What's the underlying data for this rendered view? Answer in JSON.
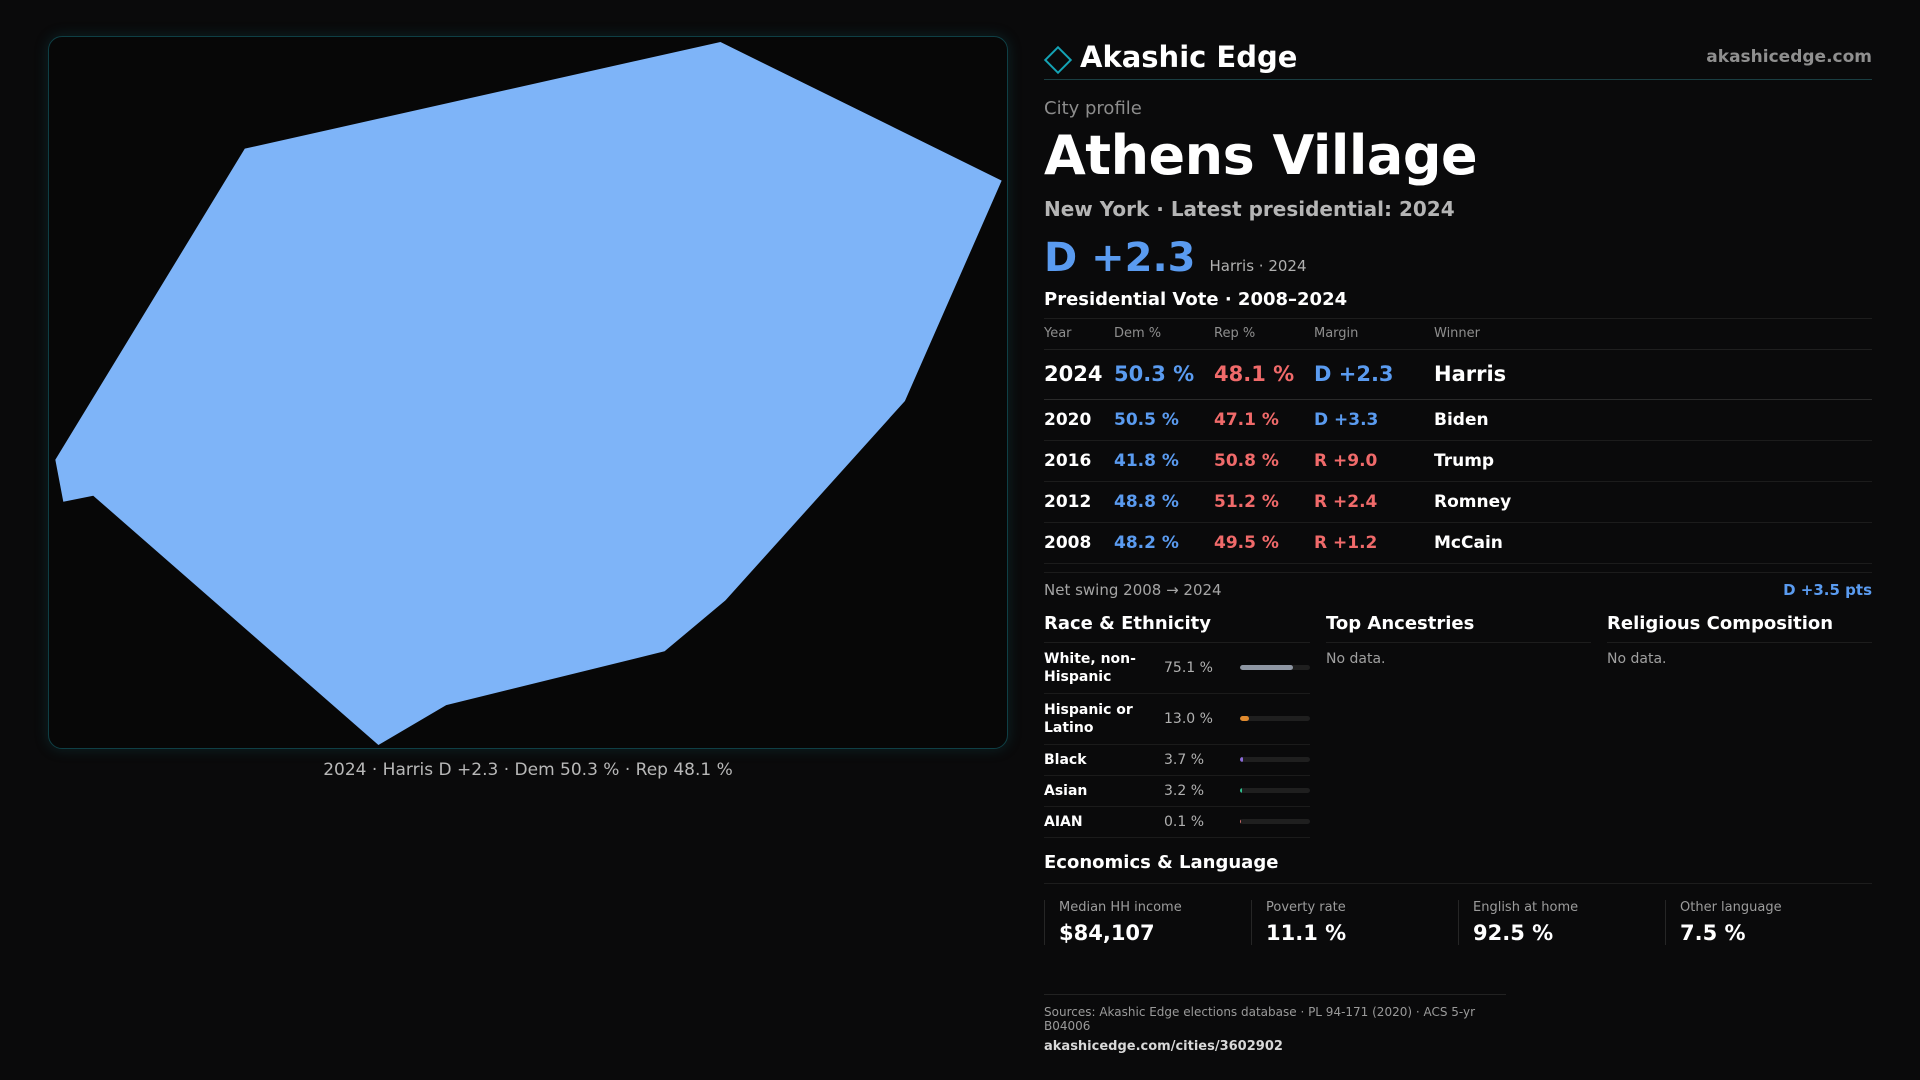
{
  "brand": {
    "name": "Akashic Edge",
    "url": "akashicedge.com"
  },
  "map": {
    "caption": "2024 · Harris D +2.3 · Dem 50.3 % · Rep 48.1 %",
    "fill_color": "#7eb4f8",
    "border_color": "#0f3f45"
  },
  "profile": {
    "eyebrow": "City profile",
    "city": "Athens Village",
    "subtitle": "New York  · Latest presidential: 2024",
    "headline_margin": "D +2.3",
    "headline_note": "Harris · 2024"
  },
  "votes": {
    "title": "Presidential Vote · 2008–2024",
    "headers": [
      "Year",
      "Dem %",
      "Rep %",
      "Margin",
      "Winner"
    ],
    "rows": [
      {
        "year": "2024",
        "dem": "50.3 %",
        "rep": "48.1 %",
        "margin": "D +2.3",
        "margin_party": "dem",
        "winner": "Harris"
      },
      {
        "year": "2020",
        "dem": "50.5 %",
        "rep": "47.1 %",
        "margin": "D +3.3",
        "margin_party": "dem",
        "winner": "Biden"
      },
      {
        "year": "2016",
        "dem": "41.8 %",
        "rep": "50.8 %",
        "margin": "R +9.0",
        "margin_party": "rep",
        "winner": "Trump"
      },
      {
        "year": "2012",
        "dem": "48.8 %",
        "rep": "51.2 %",
        "margin": "R +2.4",
        "margin_party": "rep",
        "winner": "Romney"
      },
      {
        "year": "2008",
        "dem": "48.2 %",
        "rep": "49.5 %",
        "margin": "R +1.2",
        "margin_party": "rep",
        "winner": "McCain"
      }
    ],
    "swing_label": "Net swing 2008 → 2024",
    "swing_value": "D +3.5 pts"
  },
  "race": {
    "title": "Race & Ethnicity",
    "items": [
      {
        "label": "White, non-Hispanic",
        "pct": "75.1 %",
        "value": 75.1,
        "color": "#8e96a3"
      },
      {
        "label": "Hispanic or Latino",
        "pct": "13.0 %",
        "value": 13.0,
        "color": "#e08a2e"
      },
      {
        "label": "Black",
        "pct": "3.7 %",
        "value": 3.7,
        "color": "#8a6ad8"
      },
      {
        "label": "Asian",
        "pct": "3.2 %",
        "value": 3.2,
        "color": "#2fbf8e"
      },
      {
        "label": "AIAN",
        "pct": "0.1 %",
        "value": 0.1,
        "color": "#c86a6a"
      }
    ]
  },
  "ancestries": {
    "title": "Top Ancestries",
    "empty": "No data."
  },
  "religion": {
    "title": "Religious Composition",
    "empty": "No data."
  },
  "economics": {
    "title": "Economics & Language",
    "cards": [
      {
        "label": "Median HH income",
        "value": "$84,107"
      },
      {
        "label": "Poverty rate",
        "value": "11.1 %"
      },
      {
        "label": "English at home",
        "value": "92.5 %"
      },
      {
        "label": "Other language",
        "value": "7.5 %"
      }
    ]
  },
  "footer": {
    "sources": "Sources: Akashic Edge elections database · PL 94-171 (2020) · ACS 5-yr B04006",
    "url": "akashicedge.com/cities/3602902"
  }
}
